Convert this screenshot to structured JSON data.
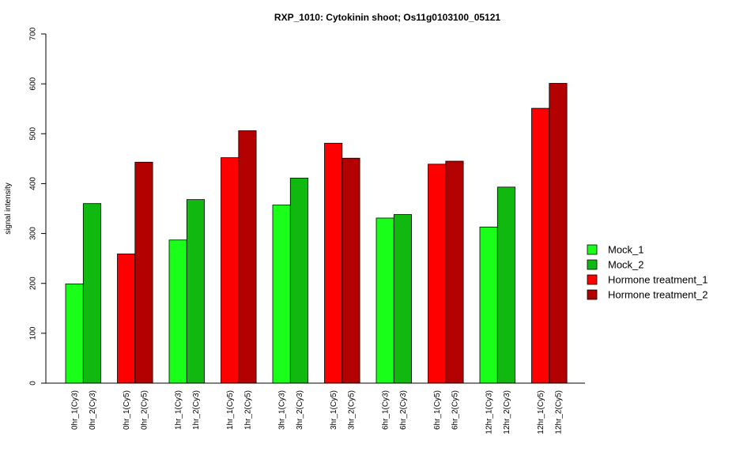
{
  "chart_data": {
    "type": "bar",
    "title": "RXP_1010: Cytokinin shoot; Os11g0103100_05121",
    "xlabel": "",
    "ylabel": "signal intensity",
    "ylim": [
      0,
      700
    ],
    "yticks": [
      0,
      100,
      200,
      300,
      400,
      500,
      600,
      700
    ],
    "grid": false,
    "legend_position": "right",
    "legend": [
      {
        "name": "Mock_1",
        "color": "#1aff1a"
      },
      {
        "name": "Mock_2",
        "color": "#10b810"
      },
      {
        "name": "Hormone treatment_1",
        "color": "#ff0000"
      },
      {
        "name": "Hormone treatment_2",
        "color": "#b30000"
      }
    ],
    "groups": [
      {
        "bars": [
          {
            "label": "0hr_1(Cy3)",
            "value": 199,
            "series": 0
          },
          {
            "label": "0hr_2(Cy3)",
            "value": 360,
            "series": 1
          }
        ]
      },
      {
        "bars": [
          {
            "label": "0hr_1(Cy5)",
            "value": 259,
            "series": 2
          },
          {
            "label": "0hr_2(Cy5)",
            "value": 443,
            "series": 3
          }
        ]
      },
      {
        "bars": [
          {
            "label": "1hr_1(Cy3)",
            "value": 287,
            "series": 0
          },
          {
            "label": "1hr_2(Cy3)",
            "value": 368,
            "series": 1
          }
        ]
      },
      {
        "bars": [
          {
            "label": "1hr_1(Cy5)",
            "value": 452,
            "series": 2
          },
          {
            "label": "1hr_2(Cy5)",
            "value": 506,
            "series": 3
          }
        ]
      },
      {
        "bars": [
          {
            "label": "3hr_1(Cy3)",
            "value": 357,
            "series": 0
          },
          {
            "label": "3hr_2(Cy3)",
            "value": 411,
            "series": 1
          }
        ]
      },
      {
        "bars": [
          {
            "label": "3hr_1(Cy5)",
            "value": 481,
            "series": 2
          },
          {
            "label": "3hr_2(Cy5)",
            "value": 451,
            "series": 3
          }
        ]
      },
      {
        "bars": [
          {
            "label": "6hr_1(Cy3)",
            "value": 331,
            "series": 0
          },
          {
            "label": "6hr_2(Cy3)",
            "value": 338,
            "series": 1
          }
        ]
      },
      {
        "bars": [
          {
            "label": "6hr_1(Cy5)",
            "value": 439,
            "series": 2
          },
          {
            "label": "6hr_2(Cy5)",
            "value": 445,
            "series": 3
          }
        ]
      },
      {
        "bars": [
          {
            "label": "12hr_1(Cy3)",
            "value": 313,
            "series": 0
          },
          {
            "label": "12hr_2(Cy3)",
            "value": 393,
            "series": 1
          }
        ]
      },
      {
        "bars": [
          {
            "label": "12hr_1(Cy5)",
            "value": 551,
            "series": 2
          },
          {
            "label": "12hr_2(Cy5)",
            "value": 601,
            "series": 3
          }
        ]
      }
    ]
  }
}
